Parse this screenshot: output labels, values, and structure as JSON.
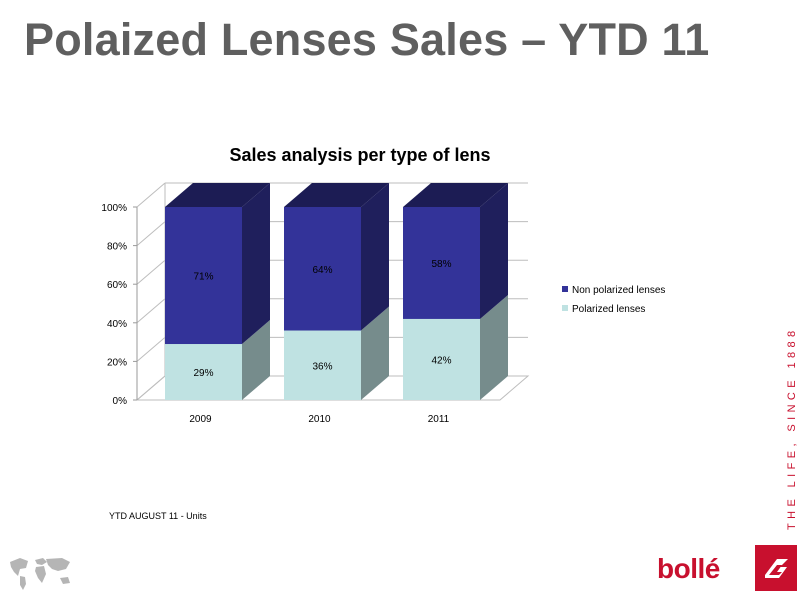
{
  "slide_title": "Polaized Lenses Sales – YTD 11",
  "footnote": "YTD AUGUST 11 - Units",
  "tagline": "THE LIFE, SINCE 1888",
  "brand": "bollé",
  "colors": {
    "non_polarized": "#333399",
    "polarized": "#bfe2e2",
    "title_gray": "#5f5f5f",
    "brand_red": "#c8102e"
  },
  "chart_data": {
    "type": "bar",
    "stacked": true,
    "three_d": true,
    "title": "Sales analysis per type of lens",
    "categories": [
      "2009",
      "2010",
      "2011"
    ],
    "series": [
      {
        "name": "Polarized lenses",
        "values": [
          29,
          36,
          42
        ],
        "labels": [
          "29%",
          "36%",
          "42%"
        ],
        "color": "#bfe2e2"
      },
      {
        "name": "Non polarized lenses",
        "values": [
          71,
          64,
          58
        ],
        "labels": [
          "71%",
          "64%",
          "58%"
        ],
        "color": "#333399"
      }
    ],
    "ylim": [
      0,
      100
    ],
    "yticks": [
      "0%",
      "20%",
      "40%",
      "60%",
      "80%",
      "100%"
    ],
    "grid": true,
    "legend": "right"
  }
}
